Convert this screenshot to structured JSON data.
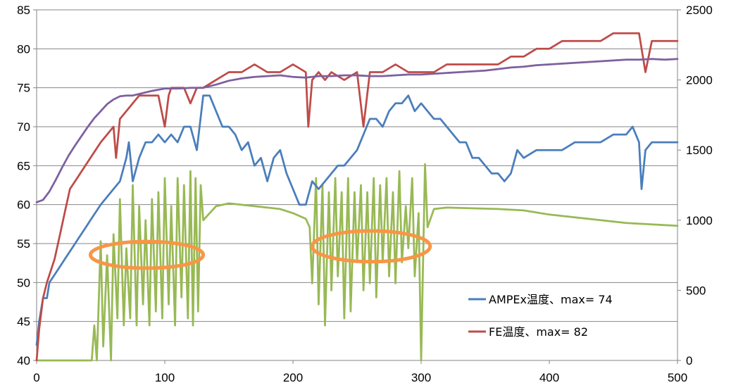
{
  "chart_data": {
    "type": "line",
    "title": "",
    "xlabel": "",
    "ylabel": "",
    "xlim": [
      0,
      500
    ],
    "ylim": [
      40,
      85
    ],
    "y2lim": [
      0,
      2500
    ],
    "grid": true,
    "legend_position": "bottom-right",
    "x_ticks": [
      "0",
      "100",
      "200",
      "300",
      "400",
      "500"
    ],
    "y_ticks": [
      "40",
      "45",
      "50",
      "55",
      "60",
      "65",
      "70",
      "75",
      "80",
      "85"
    ],
    "y2_ticks": [
      "0",
      "500",
      "1000",
      "1500",
      "2000",
      "2500"
    ],
    "legend": [
      {
        "label": "AMPEx温度、max= 74",
        "color": "#4a7ebb"
      },
      {
        "label": "FE温度、max= 82",
        "color": "#be4b48"
      }
    ],
    "series": [
      {
        "name": "AMPEx温度、max= 74",
        "axis": "left",
        "color": "#4a7ebb",
        "x": [
          0,
          2,
          5,
          8,
          10,
          14,
          18,
          22,
          26,
          30,
          34,
          38,
          42,
          46,
          50,
          55,
          60,
          65,
          70,
          72,
          75,
          80,
          85,
          90,
          95,
          100,
          105,
          110,
          115,
          120,
          125,
          130,
          135,
          140,
          145,
          150,
          155,
          160,
          165,
          170,
          175,
          180,
          185,
          190,
          195,
          200,
          205,
          210,
          215,
          220,
          225,
          230,
          235,
          240,
          245,
          250,
          255,
          260,
          265,
          270,
          275,
          280,
          285,
          290,
          295,
          300,
          305,
          310,
          315,
          320,
          325,
          330,
          335,
          340,
          345,
          350,
          355,
          360,
          365,
          370,
          375,
          380,
          390,
          400,
          410,
          420,
          430,
          440,
          450,
          460,
          465,
          470,
          472,
          475,
          480,
          490,
          500
        ],
        "y": [
          42,
          45,
          48,
          48,
          50,
          51,
          52,
          53,
          54,
          55,
          56,
          57,
          58,
          59,
          60,
          61,
          62,
          63,
          66,
          68,
          63,
          66,
          68,
          68,
          69,
          68,
          69,
          68,
          70,
          70,
          67,
          74,
          74,
          72,
          70,
          70,
          69,
          67,
          68,
          65,
          66,
          63,
          66,
          67,
          64,
          62,
          60,
          60,
          63,
          62,
          63,
          64,
          65,
          65,
          66,
          67,
          69,
          71,
          71,
          70,
          72,
          73,
          73,
          74,
          72,
          73,
          72,
          71,
          71,
          70,
          69,
          68,
          68,
          66,
          66,
          65,
          64,
          64,
          63,
          64,
          67,
          66,
          67,
          67,
          67,
          68,
          68,
          68,
          69,
          69,
          70,
          68,
          62,
          67,
          68,
          68,
          68
        ]
      },
      {
        "name": "FE温度、max= 82",
        "axis": "left",
        "color": "#be4b48",
        "x": [
          0,
          2,
          5,
          8,
          10,
          14,
          18,
          22,
          26,
          30,
          34,
          38,
          42,
          46,
          50,
          55,
          60,
          62,
          65,
          70,
          75,
          80,
          85,
          90,
          95,
          100,
          103,
          105,
          110,
          115,
          120,
          125,
          130,
          140,
          150,
          160,
          170,
          180,
          190,
          200,
          210,
          212,
          215,
          220,
          225,
          230,
          240,
          250,
          255,
          260,
          270,
          280,
          290,
          300,
          310,
          320,
          330,
          340,
          350,
          360,
          370,
          380,
          390,
          400,
          410,
          420,
          430,
          440,
          450,
          460,
          470,
          475,
          480,
          490,
          500
        ],
        "y": [
          40,
          44,
          48,
          50,
          51,
          53,
          56,
          59,
          62,
          63,
          64,
          65,
          66,
          67,
          68,
          69,
          70,
          66,
          71,
          72,
          73,
          74,
          74,
          74,
          74,
          70,
          74,
          75,
          75,
          75,
          73,
          75,
          75,
          76,
          77,
          77,
          78,
          77,
          77,
          78,
          77,
          70,
          76,
          77,
          76,
          77,
          76,
          77,
          70,
          77,
          77,
          78,
          77,
          77,
          77,
          78,
          78,
          78,
          78,
          78,
          79,
          79,
          80,
          80,
          81,
          81,
          81,
          81,
          82,
          82,
          82,
          77,
          81,
          81,
          81
        ]
      },
      {
        "name": "",
        "axis": "left",
        "color": "#7d60a0",
        "x": [
          0,
          5,
          10,
          15,
          20,
          25,
          30,
          35,
          40,
          45,
          50,
          55,
          60,
          65,
          70,
          75,
          80,
          90,
          100,
          110,
          120,
          130,
          140,
          150,
          160,
          170,
          180,
          190,
          200,
          210,
          220,
          230,
          240,
          250,
          260,
          270,
          280,
          290,
          300,
          310,
          320,
          330,
          340,
          350,
          360,
          370,
          380,
          390,
          400,
          410,
          420,
          430,
          440,
          450,
          460,
          470,
          480,
          490,
          500
        ],
        "y": [
          60.3,
          60.6,
          61.7,
          63.2,
          64.8,
          66.3,
          67.6,
          68.8,
          70.0,
          71.1,
          72.0,
          72.9,
          73.5,
          73.9,
          74.0,
          74.0,
          74.2,
          74.6,
          74.9,
          74.9,
          75.0,
          75.0,
          75.4,
          75.9,
          76.2,
          76.4,
          76.5,
          76.6,
          76.4,
          76.3,
          76.5,
          76.5,
          76.6,
          76.6,
          76.5,
          76.5,
          76.6,
          76.7,
          76.7,
          76.8,
          76.9,
          77.0,
          77.1,
          77.2,
          77.4,
          77.6,
          77.7,
          77.9,
          78.0,
          78.1,
          78.2,
          78.3,
          78.4,
          78.5,
          78.6,
          78.6,
          78.7,
          78.6,
          78.7
        ]
      },
      {
        "name": "",
        "axis": "right",
        "color": "#98b954",
        "x": [
          0,
          40,
          43,
          45,
          47,
          50,
          52,
          55,
          58,
          60,
          63,
          65,
          68,
          70,
          73,
          75,
          78,
          80,
          83,
          85,
          88,
          90,
          93,
          95,
          98,
          100,
          103,
          105,
          108,
          110,
          113,
          115,
          118,
          120,
          122,
          124,
          126,
          128,
          130,
          135,
          140,
          150,
          160,
          170,
          180,
          190,
          200,
          205,
          210,
          213,
          215,
          218,
          220,
          223,
          225,
          228,
          230,
          233,
          235,
          238,
          240,
          243,
          245,
          248,
          250,
          253,
          255,
          258,
          260,
          263,
          265,
          268,
          270,
          273,
          275,
          278,
          280,
          283,
          285,
          288,
          290,
          293,
          295,
          298,
          300,
          303,
          305,
          310,
          320,
          340,
          360,
          380,
          400,
          420,
          440,
          460,
          480,
          500
        ],
        "y": [
          0,
          0,
          0,
          250,
          0,
          850,
          100,
          750,
          0,
          900,
          300,
          1150,
          250,
          800,
          300,
          1250,
          250,
          1100,
          400,
          1000,
          250,
          1150,
          350,
          1200,
          300,
          1300,
          400,
          1100,
          250,
          1300,
          450,
          1250,
          300,
          1350,
          250,
          1300,
          350,
          1250,
          1000,
          1050,
          1100,
          1120,
          1110,
          1100,
          1090,
          1080,
          1050,
          1030,
          1010,
          950,
          550,
          1300,
          400,
          1250,
          250,
          1200,
          500,
          1300,
          600,
          1200,
          300,
          1300,
          350,
          1200,
          700,
          1250,
          500,
          1200,
          550,
          1300,
          450,
          1250,
          700,
          1300,
          600,
          1200,
          550,
          1350,
          700,
          1100,
          800,
          1300,
          600,
          1050,
          0,
          1400,
          950,
          1080,
          1090,
          1085,
          1080,
          1070,
          1040,
          1020,
          1000,
          980,
          970,
          960
        ]
      }
    ],
    "annotations": [
      {
        "shape": "ellipse",
        "cx": 86,
        "cy": 753,
        "rx": 44,
        "ry": 95,
        "axis": "right",
        "color": "#f79646"
      },
      {
        "shape": "ellipse",
        "cx": 261,
        "cy": 814,
        "rx": 46,
        "ry": 110,
        "axis": "right",
        "color": "#f79646"
      }
    ]
  }
}
